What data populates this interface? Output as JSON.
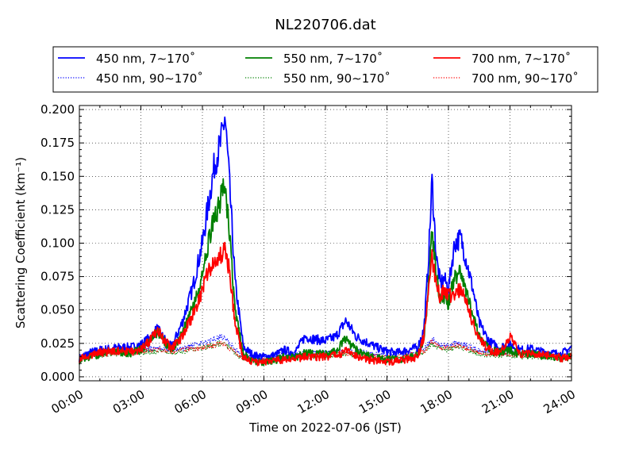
{
  "chart_data": {
    "type": "line",
    "title": "NL220706.dat",
    "xlabel": "Time on 2022-07-06 (JST)",
    "ylabel": "Scattering Coefficient (km⁻¹)",
    "xlim": [
      0,
      24
    ],
    "ylim": [
      -0.003,
      0.203
    ],
    "x_ticks": [
      0,
      3,
      6,
      9,
      12,
      15,
      18,
      21,
      24
    ],
    "x_tick_labels": [
      "00:00",
      "03:00",
      "06:00",
      "09:00",
      "12:00",
      "15:00",
      "18:00",
      "21:00",
      "24:00"
    ],
    "y_ticks": [
      0.0,
      0.025,
      0.05,
      0.075,
      0.1,
      0.125,
      0.15,
      0.175,
      0.2
    ],
    "y_tick_labels": [
      "0.000",
      "0.025",
      "0.050",
      "0.075",
      "0.100",
      "0.125",
      "0.150",
      "0.175",
      "0.200"
    ],
    "grid": true,
    "legend_position": "top",
    "x": [
      0,
      0.5,
      1,
      1.5,
      2,
      2.5,
      3,
      3.5,
      3.8,
      4,
      4.5,
      5,
      5.5,
      6,
      6.3,
      6.6,
      6.9,
      7.1,
      7.3,
      7.6,
      8,
      8.5,
      9,
      9.5,
      10,
      10.5,
      11,
      11.5,
      12,
      12.5,
      13,
      13.5,
      14,
      14.5,
      15,
      15.5,
      16,
      16.5,
      16.8,
      17,
      17.2,
      17.4,
      17.6,
      17.8,
      18,
      18.3,
      18.6,
      18.9,
      19.2,
      19.5,
      20,
      20.5,
      21,
      21.5,
      22,
      22.5,
      23,
      23.5,
      24
    ],
    "series": [
      {
        "name": "450 nm, 7∼170˚",
        "color": "#0000ff",
        "style": "solid",
        "values": [
          0.014,
          0.018,
          0.02,
          0.021,
          0.022,
          0.022,
          0.024,
          0.03,
          0.036,
          0.031,
          0.022,
          0.04,
          0.065,
          0.1,
          0.13,
          0.16,
          0.175,
          0.195,
          0.15,
          0.07,
          0.022,
          0.016,
          0.015,
          0.016,
          0.02,
          0.018,
          0.03,
          0.028,
          0.027,
          0.03,
          0.042,
          0.03,
          0.026,
          0.022,
          0.019,
          0.018,
          0.02,
          0.022,
          0.035,
          0.08,
          0.147,
          0.09,
          0.07,
          0.073,
          0.066,
          0.1,
          0.104,
          0.085,
          0.065,
          0.04,
          0.026,
          0.022,
          0.024,
          0.02,
          0.021,
          0.019,
          0.018,
          0.017,
          0.022
        ]
      },
      {
        "name": "450 nm, 90∼170˚",
        "color": "#0000ff",
        "style": "dotted",
        "values": [
          0.015,
          0.018,
          0.019,
          0.02,
          0.02,
          0.02,
          0.021,
          0.021,
          0.021,
          0.021,
          0.02,
          0.021,
          0.023,
          0.025,
          0.027,
          0.029,
          0.03,
          0.029,
          0.026,
          0.02,
          0.016,
          0.015,
          0.015,
          0.016,
          0.017,
          0.017,
          0.018,
          0.018,
          0.018,
          0.019,
          0.02,
          0.019,
          0.018,
          0.017,
          0.017,
          0.017,
          0.018,
          0.019,
          0.021,
          0.025,
          0.028,
          0.026,
          0.024,
          0.024,
          0.023,
          0.025,
          0.025,
          0.023,
          0.022,
          0.02,
          0.019,
          0.018,
          0.018,
          0.018,
          0.018,
          0.017,
          0.017,
          0.017,
          0.018
        ]
      },
      {
        "name": "550 nm, 7∼170˚",
        "color": "#008000",
        "style": "solid",
        "values": [
          0.012,
          0.015,
          0.017,
          0.018,
          0.018,
          0.018,
          0.02,
          0.028,
          0.034,
          0.029,
          0.02,
          0.032,
          0.05,
          0.075,
          0.1,
          0.12,
          0.133,
          0.142,
          0.11,
          0.05,
          0.017,
          0.012,
          0.011,
          0.012,
          0.015,
          0.014,
          0.018,
          0.017,
          0.017,
          0.019,
          0.028,
          0.02,
          0.016,
          0.014,
          0.013,
          0.013,
          0.014,
          0.016,
          0.028,
          0.06,
          0.11,
          0.075,
          0.06,
          0.06,
          0.055,
          0.075,
          0.078,
          0.062,
          0.045,
          0.03,
          0.02,
          0.018,
          0.02,
          0.016,
          0.017,
          0.016,
          0.015,
          0.014,
          0.015
        ]
      },
      {
        "name": "550 nm, 90∼170˚",
        "color": "#008000",
        "style": "dotted",
        "values": [
          0.013,
          0.015,
          0.016,
          0.017,
          0.017,
          0.017,
          0.018,
          0.019,
          0.019,
          0.019,
          0.018,
          0.019,
          0.02,
          0.022,
          0.023,
          0.024,
          0.025,
          0.024,
          0.022,
          0.017,
          0.013,
          0.012,
          0.012,
          0.013,
          0.014,
          0.014,
          0.015,
          0.015,
          0.015,
          0.016,
          0.017,
          0.016,
          0.015,
          0.014,
          0.014,
          0.014,
          0.015,
          0.016,
          0.018,
          0.022,
          0.025,
          0.023,
          0.021,
          0.021,
          0.02,
          0.022,
          0.022,
          0.02,
          0.019,
          0.017,
          0.016,
          0.016,
          0.016,
          0.015,
          0.015,
          0.015,
          0.014,
          0.014,
          0.015
        ]
      },
      {
        "name": "700 nm, 7∼170˚",
        "color": "#ff0000",
        "style": "solid",
        "values": [
          0.013,
          0.016,
          0.018,
          0.019,
          0.019,
          0.019,
          0.02,
          0.028,
          0.036,
          0.03,
          0.021,
          0.03,
          0.045,
          0.065,
          0.08,
          0.085,
          0.09,
          0.1,
          0.08,
          0.04,
          0.014,
          0.011,
          0.011,
          0.012,
          0.013,
          0.013,
          0.015,
          0.015,
          0.015,
          0.016,
          0.019,
          0.016,
          0.013,
          0.012,
          0.011,
          0.012,
          0.013,
          0.015,
          0.03,
          0.06,
          0.088,
          0.07,
          0.06,
          0.065,
          0.06,
          0.062,
          0.065,
          0.055,
          0.04,
          0.028,
          0.02,
          0.018,
          0.03,
          0.017,
          0.018,
          0.017,
          0.016,
          0.014,
          0.015
        ]
      },
      {
        "name": "700 nm, 90∼170˚",
        "color": "#ff0000",
        "style": "dotted",
        "values": [
          0.014,
          0.016,
          0.017,
          0.018,
          0.018,
          0.018,
          0.019,
          0.02,
          0.02,
          0.02,
          0.019,
          0.02,
          0.021,
          0.022,
          0.023,
          0.024,
          0.025,
          0.024,
          0.022,
          0.018,
          0.014,
          0.013,
          0.013,
          0.014,
          0.015,
          0.015,
          0.016,
          0.016,
          0.016,
          0.017,
          0.018,
          0.017,
          0.016,
          0.015,
          0.015,
          0.015,
          0.016,
          0.017,
          0.019,
          0.023,
          0.026,
          0.024,
          0.022,
          0.022,
          0.021,
          0.023,
          0.023,
          0.021,
          0.02,
          0.018,
          0.017,
          0.017,
          0.017,
          0.016,
          0.016,
          0.016,
          0.015,
          0.015,
          0.016
        ]
      }
    ]
  }
}
